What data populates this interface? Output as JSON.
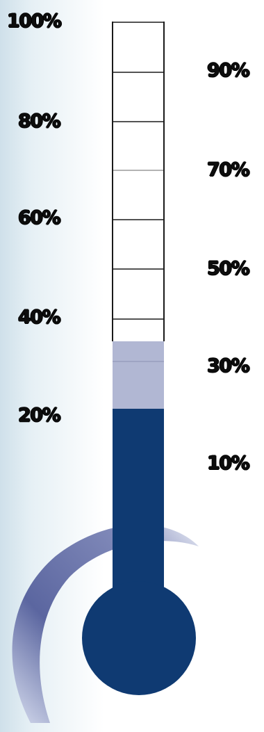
{
  "thermometer": {
    "labels_left": [
      "100%",
      "80%",
      "60%",
      "40%",
      "20%"
    ],
    "labels_right": [
      "90%",
      "70%",
      "50%",
      "30%",
      "10%"
    ],
    "progress_percent": 20,
    "pending_percent": 34,
    "colors": {
      "filled": "#0f3a72",
      "pending": "#b1b7d3",
      "empty": "#ffffff",
      "outline": "#1a1a1a",
      "arc": "#5c67a0"
    }
  }
}
